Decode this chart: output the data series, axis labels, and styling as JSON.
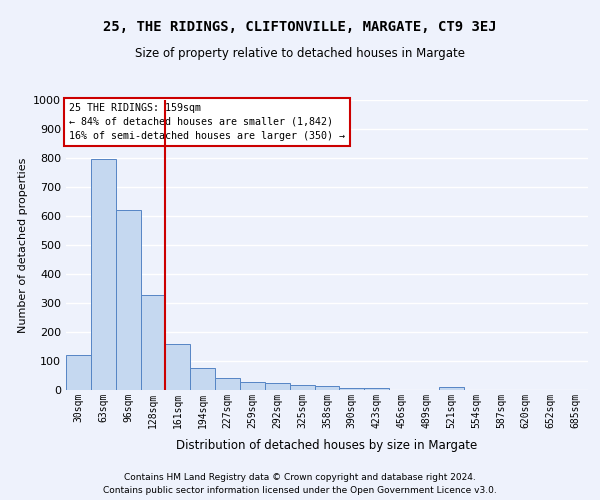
{
  "title": "25, THE RIDINGS, CLIFTONVILLE, MARGATE, CT9 3EJ",
  "subtitle": "Size of property relative to detached houses in Margate",
  "xlabel": "Distribution of detached houses by size in Margate",
  "ylabel": "Number of detached properties",
  "categories": [
    "30sqm",
    "63sqm",
    "96sqm",
    "128sqm",
    "161sqm",
    "194sqm",
    "227sqm",
    "259sqm",
    "292sqm",
    "325sqm",
    "358sqm",
    "390sqm",
    "423sqm",
    "456sqm",
    "489sqm",
    "521sqm",
    "554sqm",
    "587sqm",
    "620sqm",
    "652sqm",
    "685sqm"
  ],
  "values": [
    122,
    795,
    622,
    327,
    160,
    77,
    40,
    27,
    24,
    16,
    15,
    8,
    8,
    0,
    0,
    9,
    0,
    0,
    0,
    0,
    0
  ],
  "bar_color": "#c5d8f0",
  "bar_edge_color": "#5585c5",
  "pct_smaller": 84,
  "count_smaller": 1842,
  "pct_larger": 16,
  "count_larger": 350,
  "vline_color": "#cc0000",
  "vline_x_index": 4,
  "annotation_box_color": "#ffffff",
  "annotation_box_edge": "#cc0000",
  "ylim": [
    0,
    1000
  ],
  "yticks": [
    0,
    100,
    200,
    300,
    400,
    500,
    600,
    700,
    800,
    900,
    1000
  ],
  "background_color": "#eef2fc",
  "grid_color": "#ffffff",
  "footnote1": "Contains HM Land Registry data © Crown copyright and database right 2024.",
  "footnote2": "Contains public sector information licensed under the Open Government Licence v3.0."
}
